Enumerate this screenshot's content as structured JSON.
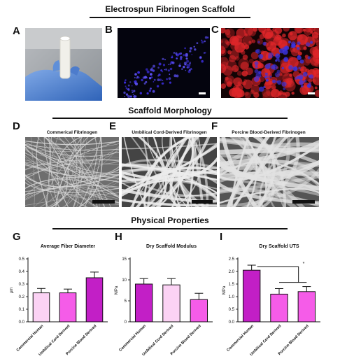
{
  "sections": {
    "top": "Electrospun Fibrinogen Scaffold",
    "middle": "Scaffold Morphology",
    "bottom": "Physical Properties"
  },
  "panel_labels": [
    "A",
    "B",
    "C",
    "D",
    "E",
    "F",
    "G",
    "H",
    "I"
  ],
  "sem_captions": [
    "Commerical Fibrinogen",
    "Umbilical Cord-Derived Fibrinogen",
    "Porcine Blood-Derived Fibrinogen"
  ],
  "colors": {
    "light_pink": "#fbd2f4",
    "magenta": "#f55ce8",
    "purple": "#c21fc6",
    "dapi_blue": "#3a2cd8",
    "stain_red": "#e0262a"
  },
  "icons": [
    "gloved-hand-photo",
    "dapi-fluorescence-image",
    "red-stain-fluorescence-image",
    "sem-fiber-image"
  ],
  "chart_data": [
    {
      "type": "bar",
      "title": "Average Fiber Diameter",
      "ylabel": "μm",
      "categories": [
        "Commercial Human",
        "Umbilical Cord Derived",
        "Porcine Blood Derived"
      ],
      "values": [
        0.23,
        0.23,
        0.35
      ],
      "errors": [
        0.035,
        0.03,
        0.045
      ],
      "ylim": [
        0,
        0.5
      ],
      "yticks": [
        "0.0",
        "0.1",
        "0.2",
        "0.3",
        "0.4",
        "0.5"
      ],
      "ytick_values": [
        0,
        0.1,
        0.2,
        0.3,
        0.4,
        0.5
      ],
      "bar_colors": [
        "#fbd2f4",
        "#f55ce8",
        "#c21fc6"
      ]
    },
    {
      "type": "bar",
      "title": "Dry Scaffold Modulus",
      "ylabel": "MPa",
      "categories": [
        "Commercial Human",
        "Umbilical Cord Derived",
        "Porcine Blood Derived"
      ],
      "values": [
        9.0,
        8.8,
        5.3
      ],
      "errors": [
        1.3,
        1.5,
        1.5
      ],
      "ylim": [
        0,
        15
      ],
      "yticks": [
        "0",
        "5",
        "10",
        "15"
      ],
      "ytick_values": [
        0,
        5,
        10,
        15
      ],
      "bar_colors": [
        "#c21fc6",
        "#fbd2f4",
        "#f55ce8"
      ]
    },
    {
      "type": "bar",
      "title": "Dry Scaffold UTS",
      "ylabel": "MPa",
      "categories": [
        "Commercial Human",
        "Umbilical Cord Derived",
        "Porcine Blood Derived"
      ],
      "values": [
        2.05,
        1.1,
        1.2
      ],
      "errors": [
        0.2,
        0.22,
        0.2
      ],
      "ylim": [
        0,
        2.5
      ],
      "yticks": [
        "0.0",
        "0.5",
        "1.0",
        "1.5",
        "2.0",
        "2.5"
      ],
      "ytick_values": [
        0,
        0.5,
        1.0,
        1.5,
        2.0,
        2.5
      ],
      "bar_colors": [
        "#c21fc6",
        "#f55ce8",
        "#f55ce8"
      ],
      "annotation": "*"
    }
  ]
}
